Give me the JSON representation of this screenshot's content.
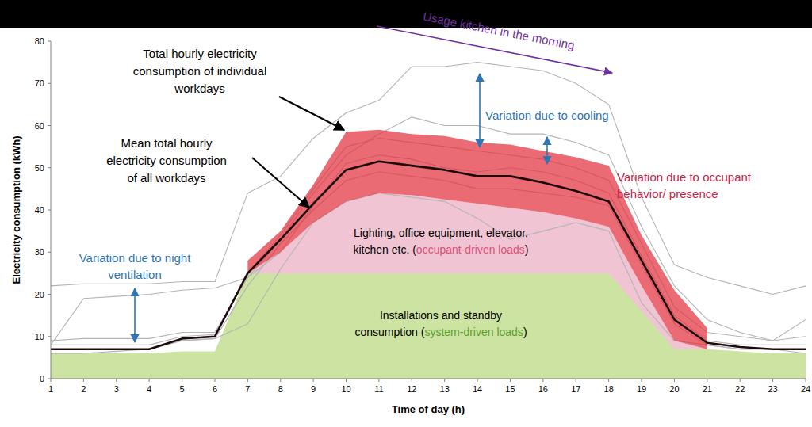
{
  "chart_data": {
    "type": "line",
    "x_label": "Time of day (h)",
    "y_label": "Electricity consumption (kWh)",
    "x": [
      1,
      2,
      3,
      4,
      5,
      6,
      7,
      8,
      9,
      10,
      11,
      12,
      13,
      14,
      15,
      16,
      17,
      18,
      19,
      20,
      21,
      22,
      23,
      24
    ],
    "xlim": [
      1,
      24
    ],
    "xticks": [
      1,
      2,
      3,
      4,
      5,
      6,
      7,
      8,
      9,
      10,
      11,
      12,
      13,
      14,
      15,
      16,
      17,
      18,
      19,
      20,
      21,
      22,
      23,
      24
    ],
    "ylim": [
      0,
      80
    ],
    "yticks": [
      0,
      10,
      20,
      30,
      40,
      50,
      60,
      70,
      80
    ],
    "grid": false,
    "series": [
      {
        "type": "area",
        "color": "#cde3a2",
        "values": [
          6,
          6,
          6,
          6,
          6.5,
          6.5,
          25,
          25,
          25,
          25,
          25,
          25,
          25,
          25,
          25,
          25,
          25,
          25,
          16,
          7,
          7,
          6.5,
          6,
          6
        ]
      },
      {
        "type": "band",
        "color": "#e2323e",
        "values": [
          null,
          null,
          null,
          null,
          null,
          null,
          28,
          35,
          46,
          58.5,
          59,
          58,
          57.5,
          56,
          55.5,
          54,
          52.5,
          50.5,
          34,
          21,
          12,
          null,
          null,
          null
        ],
        "low": [
          null,
          null,
          null,
          null,
          null,
          null,
          25,
          30,
          37,
          42,
          44,
          43.5,
          42.5,
          41.5,
          40.5,
          39.5,
          38,
          36,
          22,
          9,
          7,
          null,
          null,
          null
        ]
      },
      {
        "type": "line",
        "color": "#b4b4b4",
        "values": [
          22,
          22.5,
          22.5,
          22.5,
          23,
          23,
          44,
          48,
          57,
          63,
          66,
          74,
          74,
          75,
          74,
          73,
          70,
          65,
          43,
          27,
          24,
          22,
          20,
          22
        ]
      },
      {
        "type": "line",
        "color": "#b4b4b4",
        "values": [
          8,
          19,
          19.5,
          20,
          21,
          21.5,
          24,
          33,
          44,
          53,
          58,
          62,
          60,
          60,
          58,
          58,
          56,
          53,
          36,
          22,
          14,
          11,
          9,
          10
        ]
      },
      {
        "type": "line",
        "color": "#b4b4b4",
        "values": [
          7,
          7,
          7,
          7,
          9,
          9.5,
          13,
          26,
          37,
          42,
          44,
          43,
          42,
          38,
          33,
          35,
          37,
          35,
          18,
          9,
          8,
          7,
          7,
          7
        ]
      },
      {
        "type": "line",
        "color": "#b4b4b4",
        "values": [
          9,
          9.5,
          9.5,
          9.5,
          11,
          11,
          24,
          30,
          41,
          51,
          53,
          52,
          50,
          49,
          50,
          49,
          47,
          44,
          29,
          15,
          9,
          8,
          8,
          8
        ]
      },
      {
        "type": "line",
        "color": "#b4b4b4",
        "values": [
          8,
          8,
          8,
          8,
          10,
          10.5,
          25,
          34,
          45,
          55,
          57,
          56,
          55,
          54,
          53,
          52,
          50,
          47,
          32,
          17,
          11,
          10,
          9,
          14
        ]
      },
      {
        "type": "line",
        "color": "#b4b4b4",
        "values": [
          6,
          6,
          6.5,
          7,
          9,
          9.5,
          22,
          32,
          40,
          47,
          49,
          48,
          47,
          45,
          45,
          44,
          43,
          41,
          27,
          13,
          8,
          7,
          7,
          6
        ]
      },
      {
        "type": "line",
        "color": "#1c0b0b",
        "values": [
          7,
          7,
          7,
          7,
          9.5,
          10,
          25,
          33,
          41.5,
          49.5,
          51.5,
          50.5,
          49.5,
          48,
          48,
          46.5,
          44.5,
          42,
          28,
          14,
          8.5,
          7.5,
          7,
          7
        ]
      }
    ],
    "annotations": [
      {
        "color": "#7030a0",
        "lines": [
          [
            {
              "text": "Usage kitchen in the morning"
            }
          ]
        ]
      },
      {
        "color": "#000000",
        "lines": [
          [
            {
              "text": "Total hourly electricity"
            }
          ],
          [
            {
              "text": "consumption of individual"
            }
          ],
          [
            {
              "text": "workdays"
            }
          ]
        ]
      },
      {
        "color": "#000000",
        "lines": [
          [
            {
              "text": "Mean total hourly"
            }
          ],
          [
            {
              "text": "electricity consumption"
            }
          ],
          [
            {
              "text": "of all workdays"
            }
          ]
        ]
      },
      {
        "color": "#2e75b6",
        "lines": [
          [
            {
              "text": "Variation due to cooling"
            }
          ]
        ]
      },
      {
        "color": "#c8234a",
        "lines": [
          [
            {
              "text": "Variation due to occupant"
            }
          ],
          [
            {
              "text": "behavior/ presence"
            }
          ]
        ]
      },
      {
        "color": "#000000",
        "lines": [
          [
            {
              "text": "Lighting, office equipment, elevator,"
            }
          ],
          [
            {
              "text": "kitchen etc. ("
            },
            {
              "text": "occupant-driven loads",
              "color": "#e0507a"
            },
            {
              "text": ")"
            }
          ]
        ]
      },
      {
        "color": "#2e75b6",
        "lines": [
          [
            {
              "text": "Variation due to night"
            }
          ],
          [
            {
              "text": "ventilation"
            }
          ]
        ]
      },
      {
        "color": "#000000",
        "lines": [
          [
            {
              "text": "Installations and standby"
            }
          ],
          [
            {
              "text": "consumption ("
            },
            {
              "text": "system-driven loads",
              "color": "#5aa02c"
            },
            {
              "text": ")"
            }
          ]
        ]
      }
    ]
  }
}
